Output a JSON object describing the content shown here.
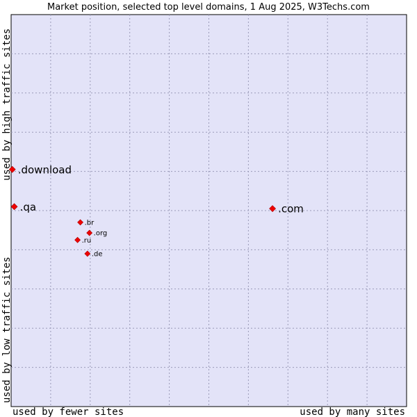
{
  "chart_data": {
    "type": "scatter",
    "title": "Market position, selected top level domains, 1 Aug 2025, W3Techs.com",
    "xlabel_left": "used by fewer sites",
    "xlabel_right": "used by many sites",
    "ylabel_bottom": "used by low traffic sites",
    "ylabel_top": "used by high traffic sites",
    "xlim": [
      0,
      100
    ],
    "ylim": [
      0,
      100
    ],
    "grid": true,
    "grid_divisions": 10,
    "points": [
      {
        "label": ".download",
        "x": 0.3,
        "y": 60.5,
        "size": "large"
      },
      {
        "label": ".qa",
        "x": 0.8,
        "y": 51.0,
        "size": "large"
      },
      {
        "label": ".com",
        "x": 66.1,
        "y": 50.5,
        "size": "large"
      },
      {
        "label": ".br",
        "x": 17.5,
        "y": 47.0,
        "size": "small"
      },
      {
        "label": ".org",
        "x": 19.8,
        "y": 44.3,
        "size": "small"
      },
      {
        "label": ".ru",
        "x": 16.8,
        "y": 42.5,
        "size": "small"
      },
      {
        "label": ".de",
        "x": 19.3,
        "y": 39.0,
        "size": "small"
      }
    ]
  },
  "colors": {
    "plot_background": "#e3e3f8",
    "marker": "#ee0000",
    "grid": "#9a9ab8"
  }
}
